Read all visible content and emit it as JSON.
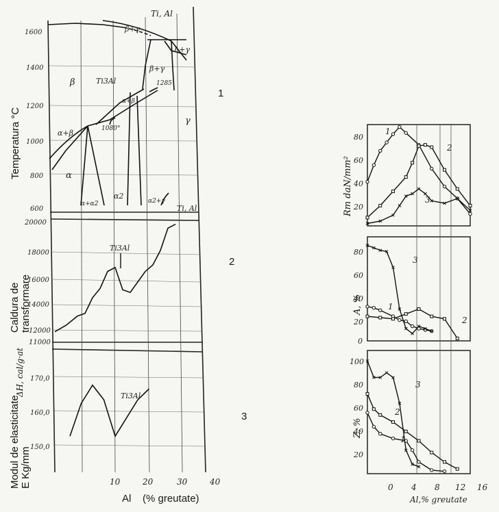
{
  "left": {
    "panel1": {
      "ylabel": "Temperatura °C",
      "yticks": [
        "1600",
        "1400",
        "1200",
        "1000",
        "800",
        "600"
      ],
      "labels": {
        "ti_al": "Ti, Al",
        "b_gamma_top": "β+γ",
        "l_gamma": "L+γ",
        "beta": "β",
        "ti3al": "Ti3Al",
        "b_gamma": "β+γ",
        "t1285": "1285",
        "t1080": "1080°",
        "a_b_top": "α+β",
        "ab": "α+β",
        "gamma": "γ",
        "alpha": "α",
        "a_a2": "α+α2",
        "a2": "α2",
        "a2_g": "α2+γ"
      },
      "number": "1"
    },
    "panel2": {
      "ylabel_line1": "Caldura de",
      "ylabel_line2": "transformare",
      "yticks": [
        "20000",
        "18000",
        "16000",
        "14000",
        "12000",
        "11000"
      ],
      "unit": "ΔH, cal/g·at",
      "labels": {
        "ti3al": "Ti3Al",
        "ti_al": "Ti, Al"
      },
      "number": "2"
    },
    "panel3": {
      "ylabel_line1": "Modul de elasticitate",
      "ylabel_line2": "E Kg/mm",
      "yticks": [
        "170,0",
        "160,0",
        "150,0"
      ],
      "labels": {
        "ti3al": "Ti3Al"
      },
      "number": "3"
    },
    "xticks": [
      "10",
      "20",
      "30",
      "40"
    ],
    "xlabel": "Al    (% greutate)"
  },
  "right": {
    "top": {
      "ylabel": "Rm daN/mm²",
      "yticks": [
        "80",
        "60",
        "40",
        "20"
      ],
      "series": [
        "1",
        "2",
        "3"
      ]
    },
    "mid": {
      "ylabel": "A, %",
      "yticks": [
        "80",
        "60",
        "40",
        "20",
        "0"
      ],
      "series": [
        "1",
        "2",
        "3"
      ]
    },
    "bot": {
      "ylabel": "Z, %",
      "yticks": [
        "100",
        "80",
        "60",
        "40",
        "20"
      ],
      "series": [
        "1",
        "2",
        "3"
      ]
    },
    "xticks": [
      "0",
      "4",
      "8",
      "12",
      "16"
    ],
    "xlabel": "Al,% greutate"
  },
  "chart_data": [
    {
      "type": "line",
      "ylabel": "Temperatura °C",
      "ylim": [
        600,
        1700
      ],
      "xlim": [
        0,
        40
      ],
      "series": [
        {
          "x": [
            0,
            8,
            17
          ],
          "y": [
            1660,
            1650,
            1610
          ]
        },
        {
          "x": [
            17,
            26,
            34
          ],
          "y": [
            1660,
            1620,
            1560
          ]
        },
        {
          "x": [
            0,
            3,
            8,
            12,
            18,
            20
          ],
          "y": [
            860,
            960,
            1060,
            1080,
            1160,
            1285
          ]
        },
        {
          "x": [
            8,
            14,
            20
          ],
          "y": [
            1080,
            1200,
            1285
          ]
        }
      ]
    },
    {
      "type": "line",
      "ylabel": "Caldura de transformare",
      "ylim": [
        11000,
        20500
      ],
      "xlim": [
        0,
        40
      ],
      "series": [
        {
          "x": [
            0,
            3,
            6,
            8,
            10,
            12,
            14,
            16,
            18,
            20,
            22,
            24,
            26,
            28,
            30,
            32
          ],
          "y": [
            11800,
            12300,
            13000,
            13200,
            14400,
            15100,
            16400,
            16700,
            15000,
            14800,
            15600,
            16400,
            16900,
            18000,
            19700,
            20000
          ]
        }
      ]
    },
    {
      "type": "line",
      "ylabel": "Modul de elasticitate E Kg/mm",
      "ylim": [
        145,
        175
      ],
      "xlim": [
        0,
        40
      ],
      "series": [
        {
          "x": [
            4,
            7,
            10,
            13,
            16,
            19,
            22,
            25
          ],
          "y": [
            153,
            162,
            167,
            163,
            153,
            158,
            163,
            166
          ]
        }
      ]
    },
    {
      "type": "line",
      "ylabel": "Rm daN/mm²",
      "xlabel": "Al,% greutate",
      "ylim": [
        5,
        90
      ],
      "xlim": [
        0,
        16
      ],
      "series": [
        {
          "name": "1",
          "x": [
            0,
            1,
            2,
            3,
            4,
            5,
            6,
            8,
            10,
            12,
            14,
            16
          ],
          "y": [
            42,
            56,
            68,
            75,
            82,
            88,
            83,
            73,
            53,
            38,
            28,
            15
          ]
        },
        {
          "name": "2",
          "x": [
            0,
            2,
            4,
            6,
            7,
            8,
            9,
            10,
            12,
            14,
            16
          ],
          "y": [
            12,
            22,
            34,
            46,
            58,
            72,
            73,
            71,
            52,
            36,
            22
          ]
        },
        {
          "name": "3",
          "x": [
            0,
            2,
            4,
            5,
            6,
            7,
            8,
            9,
            10,
            12,
            14,
            16
          ],
          "y": [
            7,
            9,
            14,
            22,
            30,
            32,
            36,
            32,
            26,
            24,
            28,
            18
          ]
        }
      ]
    },
    {
      "type": "line",
      "ylabel": "A, %",
      "xlabel": "Al,% greutate",
      "ylim": [
        0,
        85
      ],
      "xlim": [
        0,
        16
      ],
      "series": [
        {
          "name": "1",
          "x": [
            0,
            1,
            2,
            4,
            5,
            6,
            7,
            8,
            9,
            10
          ],
          "y": [
            28,
            27,
            25,
            20,
            17,
            16,
            12,
            10,
            9,
            8
          ]
        },
        {
          "name": "2",
          "x": [
            0,
            2,
            4,
            6,
            8,
            10,
            12,
            14
          ],
          "y": [
            20,
            19,
            18,
            22,
            26,
            20,
            18,
            2
          ]
        },
        {
          "name": "3",
          "x": [
            0,
            1,
            2,
            3,
            4,
            5,
            6,
            7,
            8,
            9,
            10
          ],
          "y": [
            78,
            76,
            74,
            73,
            60,
            26,
            10,
            6,
            12,
            10,
            8
          ]
        }
      ]
    },
    {
      "type": "line",
      "ylabel": "Z, %",
      "xlabel": "Al,% greutate",
      "ylim": [
        0,
        105
      ],
      "xlim": [
        0,
        16
      ],
      "series": [
        {
          "name": "1",
          "x": [
            0,
            1,
            2,
            4,
            6,
            7,
            8,
            10,
            12
          ],
          "y": [
            52,
            40,
            34,
            30,
            28,
            20,
            10,
            3,
            2
          ]
        },
        {
          "name": "2",
          "x": [
            0,
            1,
            2,
            4,
            6,
            8,
            10,
            12,
            14
          ],
          "y": [
            68,
            55,
            50,
            44,
            36,
            28,
            18,
            10,
            4
          ]
        },
        {
          "name": "3",
          "x": [
            0,
            1,
            2,
            3,
            4,
            5,
            6,
            7,
            8
          ],
          "y": [
            96,
            82,
            82,
            86,
            82,
            60,
            20,
            8,
            6
          ]
        }
      ]
    }
  ]
}
